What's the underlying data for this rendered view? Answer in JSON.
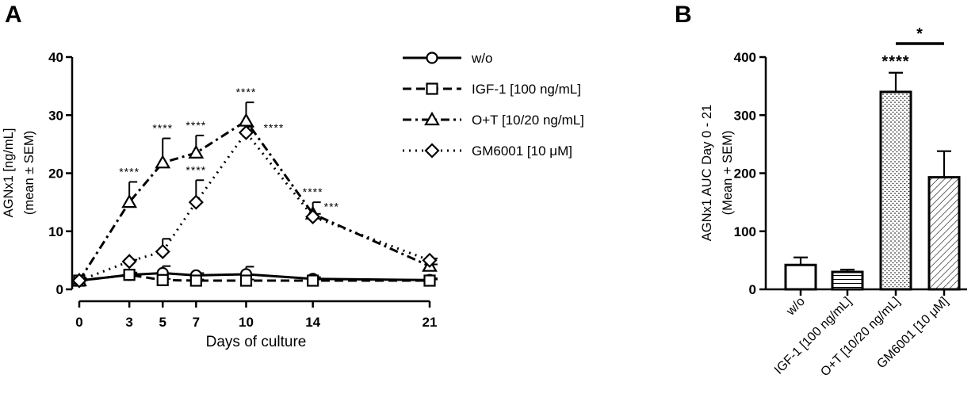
{
  "chart_data": [
    {
      "panel": "A",
      "type": "line",
      "xlabel": "Days of culture",
      "ylabel_lines": [
        "AGNx1 [ng/mL]",
        "(mean ± SEM)"
      ],
      "x": [
        0,
        3,
        5,
        7,
        10,
        14,
        21
      ],
      "x_ticks": [
        0,
        3,
        5,
        7,
        10,
        14,
        21
      ],
      "y_ticks": [
        0,
        10,
        20,
        30,
        40
      ],
      "xlim": [
        0,
        21
      ],
      "ylim": [
        0,
        40
      ],
      "series": [
        {
          "name": "w/o",
          "line_style": "solid",
          "marker": "circle",
          "values": [
            1.5,
            2.5,
            2.8,
            2.4,
            2.6,
            1.8,
            1.6
          ],
          "errors": [
            0,
            0.3,
            1.2,
            0.4,
            1.3,
            0.3,
            0.3
          ]
        },
        {
          "name": "IGF-1 [100 ng/mL]",
          "line_style": "dashed",
          "marker": "square",
          "values": [
            1.5,
            2.5,
            1.6,
            1.5,
            1.5,
            1.5,
            1.5
          ],
          "errors": [
            0,
            0.4,
            0.2,
            0.2,
            0.2,
            0.2,
            0.2
          ]
        },
        {
          "name": "O+T [10/20 ng/mL]",
          "line_style": "dashdot",
          "marker": "triangle",
          "values": [
            1.5,
            15,
            21.8,
            23.5,
            29,
            13,
            4
          ],
          "errors": [
            0,
            3.5,
            4.2,
            3.0,
            3.2,
            2.0,
            0.3
          ],
          "annotations": [
            "",
            "****",
            "****",
            "****",
            "****",
            "****",
            ""
          ]
        },
        {
          "name": "GM6001 [10 μM]",
          "line_style": "dotted",
          "marker": "diamond",
          "values": [
            1.5,
            4.8,
            6.5,
            15,
            27,
            12.5,
            5
          ],
          "errors": [
            0,
            0.3,
            2.2,
            3.8,
            1.0,
            0.5,
            0.3
          ],
          "annotations": [
            "",
            "",
            "",
            "****",
            "****",
            "***",
            ""
          ]
        }
      ]
    },
    {
      "panel": "B",
      "type": "bar",
      "ylabel_lines": [
        "AGNx1 AUC Day 0 - 21",
        "(Mean + SEM)"
      ],
      "categories": [
        "w/o",
        "IGF-1 [100 ng/mL]",
        "O+T [10/20 ng/mL]",
        "GM6001 [10 μM]"
      ],
      "values": [
        42,
        30,
        340,
        193
      ],
      "errors": [
        13,
        4,
        33,
        45
      ],
      "patterns": [
        "none",
        "horizontal-lines",
        "dots",
        "diagonal-lines"
      ],
      "y_ticks": [
        0,
        100,
        200,
        300,
        400
      ],
      "ylim": [
        0,
        400
      ],
      "annotations": [
        "",
        "",
        "****",
        ""
      ],
      "comparison": {
        "from": "O+T [10/20 ng/mL]",
        "to": "GM6001 [10 μM]",
        "label": "*"
      }
    }
  ]
}
